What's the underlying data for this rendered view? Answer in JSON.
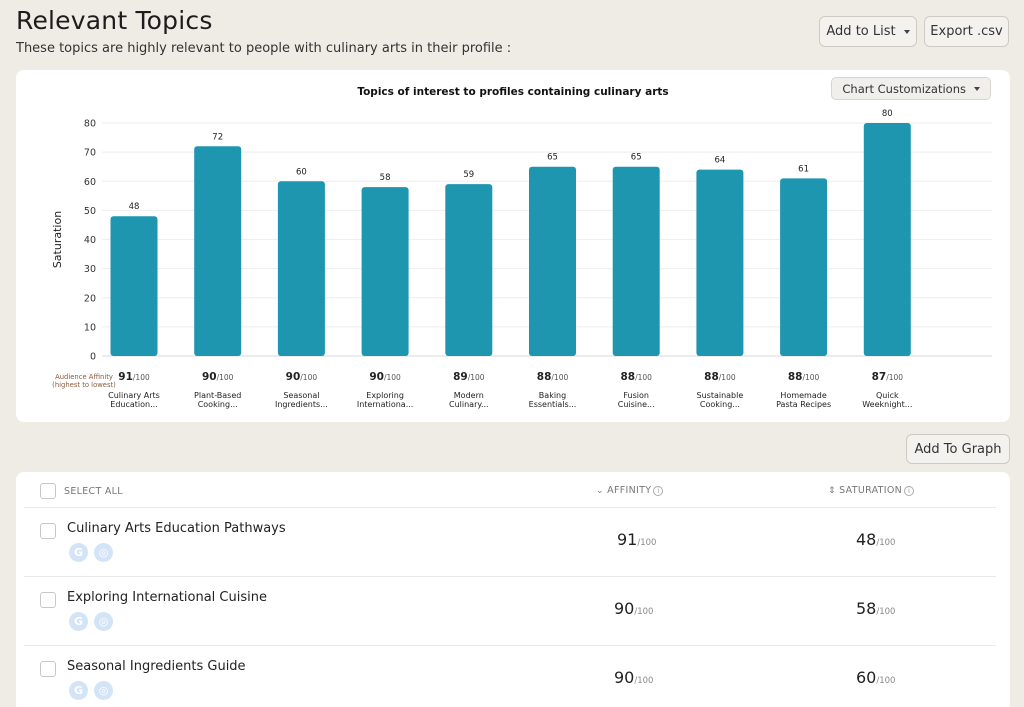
{
  "header": {
    "title": "Relevant Topics",
    "subtitle": "These topics are highly relevant to people with culinary arts in their profile :",
    "add_to_list": "Add to List",
    "export": "Export .csv"
  },
  "chart_card": {
    "customizations_label": "Chart Customizations",
    "affinity_label_line1": "Audience Affinity",
    "affinity_label_line2": "(highest to lowest)",
    "affinity_suffix": "/100"
  },
  "chart_data": {
    "type": "bar",
    "title": "Topics of interest to profiles containing culinary arts",
    "ylabel": "Saturation",
    "xlabel": "",
    "ylim": [
      0,
      80
    ],
    "yticks": [
      0,
      10,
      20,
      30,
      40,
      50,
      60,
      70,
      80
    ],
    "grid": true,
    "bar_color": "#1e96b0",
    "categories": [
      [
        "Culinary Arts",
        "Education..."
      ],
      [
        "Plant-Based",
        "Cooking..."
      ],
      [
        "Seasonal",
        "Ingredients..."
      ],
      [
        "Exploring",
        "Internationa..."
      ],
      [
        "Modern",
        "Culinary..."
      ],
      [
        "Baking",
        "Essentials..."
      ],
      [
        "Fusion",
        "Cuisine..."
      ],
      [
        "Sustainable",
        "Cooking..."
      ],
      [
        "Homemade",
        "Pasta Recipes"
      ],
      [
        "Quick",
        "Weeknight..."
      ]
    ],
    "series": [
      {
        "values": [
          48,
          72,
          60,
          58,
          59,
          65,
          65,
          64,
          61,
          80
        ]
      }
    ],
    "affinity": [
      91,
      90,
      90,
      90,
      89,
      88,
      88,
      88,
      88,
      87
    ]
  },
  "add_to_graph": "Add To Graph",
  "table": {
    "select_all": "SELECT ALL",
    "col_affinity": "AFFINITY",
    "col_saturation": "SATURATION",
    "suffix": "/100",
    "rows": [
      {
        "name": "Culinary Arts Education Pathways",
        "affinity": "91",
        "saturation": "48"
      },
      {
        "name": "Exploring International Cuisine",
        "affinity": "90",
        "saturation": "58"
      },
      {
        "name": "Seasonal Ingredients Guide",
        "affinity": "90",
        "saturation": "60"
      }
    ]
  }
}
